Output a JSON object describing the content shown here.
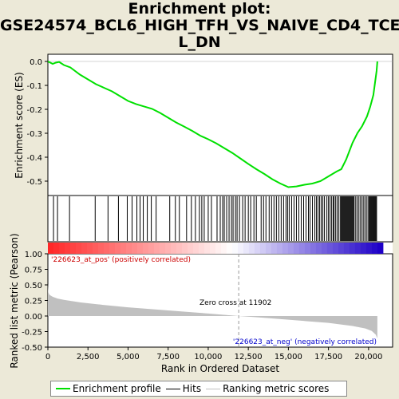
{
  "title_lines": [
    "Enrichment plot:",
    "GSE24574_BCL6_HIGH_TFH_VS_NAIVE_CD4_TCEL",
    "L_DN"
  ],
  "colors": {
    "enrichment": "#00e000",
    "hits": "#000000",
    "metric": "#c0c0c0",
    "pos_label": "#cc0000",
    "neg_label": "#0000cc",
    "background": "#ece9d8"
  },
  "chart_data": [
    {
      "type": "line",
      "name": "enrichment-score-panel",
      "ylabel": "Enrichment score (ES)",
      "ylim": [
        -0.56,
        0.03
      ],
      "yticks": [
        0.0,
        -0.1,
        -0.2,
        -0.3,
        -0.4,
        -0.5
      ],
      "ytick_labels": [
        "0.0",
        "-0.1",
        "-0.2",
        "-0.3",
        "-0.4",
        "-0.5"
      ],
      "xlim": [
        0,
        21500
      ],
      "x": [
        0,
        300,
        500,
        700,
        1000,
        1400,
        2000,
        2500,
        3000,
        3500,
        4000,
        4500,
        5000,
        5500,
        6000,
        6500,
        7000,
        7500,
        8000,
        8500,
        9000,
        9500,
        10000,
        10500,
        11000,
        11500,
        12000,
        12500,
        13000,
        13500,
        14000,
        14500,
        15000,
        15500,
        16000,
        16500,
        17000,
        17500,
        18000,
        18300,
        18600,
        19000,
        19300,
        19600,
        19900,
        20100,
        20300,
        20400,
        20500,
        20550
      ],
      "y": [
        0.0,
        -0.01,
        -0.005,
        -0.002,
        -0.015,
        -0.025,
        -0.055,
        -0.075,
        -0.095,
        -0.11,
        -0.125,
        -0.145,
        -0.165,
        -0.178,
        -0.188,
        -0.198,
        -0.215,
        -0.235,
        -0.255,
        -0.272,
        -0.29,
        -0.31,
        -0.325,
        -0.342,
        -0.362,
        -0.382,
        -0.405,
        -0.428,
        -0.45,
        -0.47,
        -0.492,
        -0.51,
        -0.525,
        -0.522,
        -0.515,
        -0.51,
        -0.5,
        -0.48,
        -0.46,
        -0.45,
        -0.41,
        -0.34,
        -0.3,
        -0.27,
        -0.23,
        -0.19,
        -0.14,
        -0.09,
        -0.04,
        0.0
      ]
    },
    {
      "type": "scatter",
      "name": "hits-panel",
      "positions": [
        350,
        600,
        1350,
        2950,
        3750,
        4400,
        4950,
        5250,
        5550,
        5750,
        5950,
        6200,
        6450,
        6750,
        7600,
        7950,
        8200,
        8650,
        8950,
        9200,
        9450,
        9600,
        9750,
        10000,
        10200,
        10550,
        10750,
        10900,
        11000,
        11150,
        11300,
        11450,
        11550,
        11700,
        11800,
        11950,
        12150,
        12300,
        12500,
        12650,
        12850,
        13000,
        13300,
        13450,
        13600,
        13800,
        13950,
        14100,
        14250,
        14400,
        14550,
        14700,
        14850,
        14950,
        15050,
        15200,
        15350,
        15500,
        15650,
        15800,
        15950,
        16100,
        16250,
        16350,
        16500,
        16650,
        16750,
        16850,
        16950,
        17050,
        17150,
        17250,
        17400,
        17500,
        17600,
        17700,
        17800,
        17850,
        17950,
        18050,
        18150,
        18250,
        18300,
        18350,
        18400,
        18450,
        18500,
        18550,
        18600,
        18650,
        18700,
        18750,
        18800,
        18850,
        18900,
        18950,
        19000,
        19050,
        19100,
        19200,
        19300,
        19400,
        19500,
        19600,
        19700,
        19800,
        19900,
        20000,
        20050,
        20100,
        20150,
        20200,
        20250,
        20300,
        20350,
        20400,
        20450,
        20500
      ]
    },
    {
      "type": "area",
      "name": "ranked-metric-panel",
      "xlabel": "Rank in Ordered Dataset",
      "ylabel": "Ranked list metric (Pearson)",
      "ylim": [
        -0.5,
        1.0
      ],
      "yticks": [
        1.0,
        0.75,
        0.5,
        0.25,
        0.0,
        -0.25,
        -0.5
      ],
      "ytick_labels": [
        "1.00",
        "0.75",
        "0.50",
        "0.25",
        "0.00",
        "-0.25",
        "-0.50"
      ],
      "xticks": [
        0,
        2500,
        5000,
        7500,
        10000,
        12500,
        15000,
        17500,
        20000
      ],
      "xtick_labels": [
        "0",
        "2,500",
        "5,000",
        "7,500",
        "10,000",
        "12,500",
        "15,000",
        "17,500",
        "20,000"
      ],
      "x": [
        0,
        30,
        100,
        300,
        600,
        1000,
        2000,
        3000,
        5000,
        7500,
        10000,
        11902,
        13000,
        15000,
        17500,
        19000,
        19800,
        20200,
        20450,
        20550
      ],
      "y": [
        0.52,
        0.38,
        0.34,
        0.31,
        0.28,
        0.26,
        0.22,
        0.19,
        0.14,
        0.09,
        0.04,
        0.0,
        -0.02,
        -0.06,
        -0.11,
        -0.16,
        -0.2,
        -0.24,
        -0.3,
        -0.36
      ],
      "zero_cross": 11902,
      "annotations": {
        "pos": "'226623_at_pos' (positively correlated)",
        "neg": "'226623_at_neg' (negatively correlated)",
        "zero": "Zero cross at 11902"
      }
    }
  ],
  "legend": {
    "items": [
      {
        "label": "Enrichment profile",
        "color": "#00e000"
      },
      {
        "label": "Hits",
        "color": "#000000"
      },
      {
        "label": "Ranking metric scores",
        "color": "#c0c0c0"
      }
    ]
  }
}
